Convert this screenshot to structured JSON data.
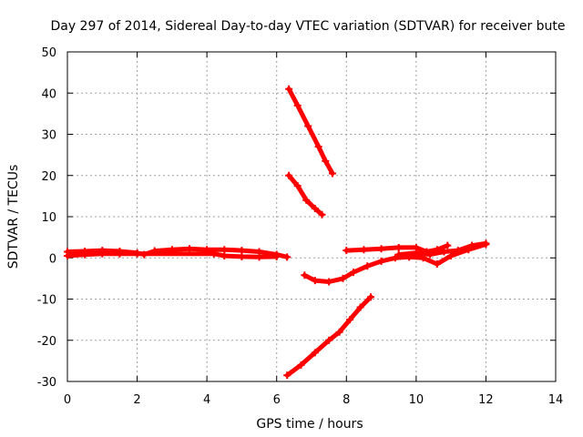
{
  "chart_data": {
    "type": "scatter",
    "title": "Day 297 of 2014, Sidereal Day-to-day VTEC variation (SDTVAR) for receiver bute",
    "xlabel": "GPS time / hours",
    "ylabel": "SDTVAR / TECUs",
    "xlim": [
      0,
      14
    ],
    "ylim": [
      -30,
      50
    ],
    "xticks": [
      0,
      2,
      4,
      6,
      8,
      10,
      12,
      14
    ],
    "yticks": [
      -30,
      -20,
      -10,
      0,
      10,
      20,
      30,
      40,
      50
    ],
    "xtick_labels": [
      "0",
      "2",
      "4",
      "6",
      "8",
      "10",
      "12",
      "14"
    ],
    "ytick_labels": [
      "-30",
      "-20",
      "-10",
      "0",
      "10",
      "20",
      "30",
      "40",
      "50"
    ],
    "grid": true,
    "color": "#ff0000",
    "series": [
      {
        "values": [
          [
            0.0,
            1.5
          ],
          [
            0.5,
            1.6
          ],
          [
            1.0,
            1.8
          ],
          [
            1.5,
            1.6
          ],
          [
            2.0,
            1.2
          ],
          [
            2.2,
            0.8
          ],
          [
            2.5,
            1.7
          ],
          [
            3.0,
            2.0
          ],
          [
            3.5,
            2.2
          ],
          [
            4.0,
            2.0
          ],
          [
            4.5,
            2.0
          ],
          [
            5.0,
            1.8
          ],
          [
            5.5,
            1.5
          ],
          [
            6.0,
            0.8
          ],
          [
            6.3,
            0.2
          ]
        ]
      },
      {
        "values": [
          [
            0.0,
            0.5
          ],
          [
            0.5,
            0.8
          ],
          [
            1.0,
            1.0
          ],
          [
            1.5,
            1.0
          ],
          [
            2.0,
            1.0
          ],
          [
            4.2,
            1.0
          ],
          [
            4.5,
            0.5
          ],
          [
            5.0,
            0.3
          ],
          [
            5.5,
            0.2
          ],
          [
            6.0,
            0.3
          ]
        ]
      },
      {
        "values": [
          [
            6.35,
            41.0
          ],
          [
            6.6,
            37.0
          ],
          [
            6.9,
            32.0
          ],
          [
            7.2,
            27.0
          ],
          [
            7.4,
            23.5
          ],
          [
            7.6,
            20.5
          ]
        ]
      },
      {
        "values": [
          [
            6.35,
            20.0
          ],
          [
            6.6,
            17.5
          ],
          [
            6.85,
            14.0
          ],
          [
            7.1,
            12.0
          ],
          [
            7.3,
            10.5
          ]
        ]
      },
      {
        "values": [
          [
            6.3,
            -28.5
          ],
          [
            6.7,
            -26.0
          ],
          [
            7.1,
            -23.0
          ],
          [
            7.5,
            -20.0
          ],
          [
            7.8,
            -18.0
          ],
          [
            8.1,
            -15.0
          ],
          [
            8.4,
            -12.0
          ],
          [
            8.7,
            -9.5
          ]
        ]
      },
      {
        "values": [
          [
            6.8,
            -4.2
          ],
          [
            7.1,
            -5.5
          ],
          [
            7.5,
            -5.8
          ],
          [
            7.9,
            -5.0
          ],
          [
            8.2,
            -3.5
          ],
          [
            8.6,
            -2.0
          ],
          [
            9.0,
            -0.8
          ],
          [
            9.4,
            0.0
          ],
          [
            9.8,
            0.2
          ],
          [
            10.2,
            0.0
          ],
          [
            10.6,
            -1.5
          ],
          [
            11.0,
            0.5
          ],
          [
            11.5,
            2.0
          ],
          [
            12.0,
            3.3
          ]
        ]
      },
      {
        "values": [
          [
            8.0,
            1.8
          ],
          [
            8.5,
            2.0
          ],
          [
            9.0,
            2.2
          ],
          [
            9.5,
            2.5
          ],
          [
            10.0,
            2.5
          ],
          [
            10.3,
            1.5
          ],
          [
            10.6,
            2.0
          ],
          [
            10.9,
            3.0
          ]
        ]
      },
      {
        "values": [
          [
            9.5,
            0.8
          ],
          [
            10.0,
            1.2
          ],
          [
            10.4,
            0.8
          ],
          [
            10.8,
            1.5
          ],
          [
            11.2,
            1.8
          ],
          [
            11.6,
            3.0
          ],
          [
            12.0,
            3.5
          ]
        ]
      }
    ]
  }
}
